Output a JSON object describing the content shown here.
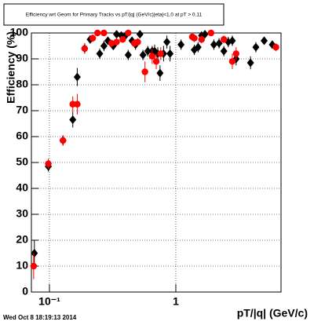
{
  "chart_data": {
    "type": "scatter",
    "title": "Efficiency wrt Geom for Primary Tracks vs pT/|q| (GeV/c)|eta|<1.0 at pT > 0.11",
    "x_label": "pT/|q| (GeV/c)",
    "y_label": "Efficiency (%)",
    "footer": "Wed Oct  8 18:19:13 2014",
    "xlim": [
      0.072,
      6.8
    ],
    "xscale": "log",
    "xticks": [
      {
        "value": 0.1,
        "label": "10⁻¹"
      },
      1
    ],
    "ylim": [
      0,
      100
    ],
    "yticks": [
      0,
      10,
      20,
      30,
      40,
      50,
      60,
      70,
      80,
      90,
      100
    ],
    "grid": true,
    "series": [
      {
        "color": "#000000",
        "marker": "diamond",
        "x": [
          0.076,
          0.098,
          0.128,
          0.153,
          0.166,
          0.19,
          0.21,
          0.25,
          0.27,
          0.29,
          0.32,
          0.34,
          0.37,
          0.4,
          0.42,
          0.45,
          0.48,
          0.52,
          0.55,
          0.6,
          0.65,
          0.68,
          0.72,
          0.75,
          0.8,
          0.85,
          0.9,
          1.1,
          1.4,
          1.5,
          1.6,
          1.7,
          2.0,
          2.2,
          2.4,
          2.6,
          2.8,
          3.0,
          3.9,
          4.3,
          5.0,
          5.8
        ],
        "values": [
          15,
          48.5,
          58.5,
          66.5,
          83,
          94,
          97.5,
          92,
          95,
          97,
          95,
          99.5,
          99,
          99,
          91.5,
          97,
          95.5,
          99.5,
          91.5,
          93,
          93,
          93,
          92,
          84.5,
          92,
          96.5,
          92,
          95.5,
          93.5,
          94.5,
          99,
          99.5,
          95.5,
          96,
          93,
          96.5,
          97,
          90,
          88.5,
          94.5,
          97,
          95.5
        ],
        "errors": [
          5,
          2,
          2,
          3,
          3.5,
          2,
          1.5,
          2,
          2,
          1.5,
          1.5,
          1,
          1.5,
          1,
          2,
          1.5,
          2,
          1,
          2,
          2,
          2,
          2.5,
          2.5,
          3,
          3,
          2.5,
          3,
          2,
          2,
          2,
          1,
          1,
          2,
          2,
          2,
          2,
          2,
          2.5,
          2.5,
          2,
          1.5,
          1.5
        ]
      },
      {
        "color": "#ff0000",
        "marker": "circle",
        "x": [
          0.075,
          0.098,
          0.128,
          0.153,
          0.166,
          0.19,
          0.22,
          0.24,
          0.27,
          0.31,
          0.34,
          0.38,
          0.42,
          0.47,
          0.5,
          0.57,
          0.65,
          0.7,
          0.76,
          1.35,
          1.4,
          1.6,
          1.9,
          2.4,
          2.8,
          3.0,
          6.2
        ],
        "values": [
          10,
          49.5,
          58.5,
          72.5,
          72.5,
          94,
          98,
          100,
          100,
          96,
          96.5,
          97.5,
          100,
          96,
          96.5,
          85,
          91,
          89,
          92,
          98.5,
          98,
          97.5,
          100,
          97.5,
          89,
          92,
          94.5
        ],
        "errors": [
          5,
          2,
          2,
          3,
          4,
          2,
          1.5,
          1,
          1,
          1.5,
          1.5,
          1,
          1,
          1.5,
          1.5,
          4,
          3,
          3,
          2.5,
          1.5,
          1.5,
          1.5,
          1,
          1.5,
          3,
          2.5,
          1.5
        ]
      }
    ]
  }
}
